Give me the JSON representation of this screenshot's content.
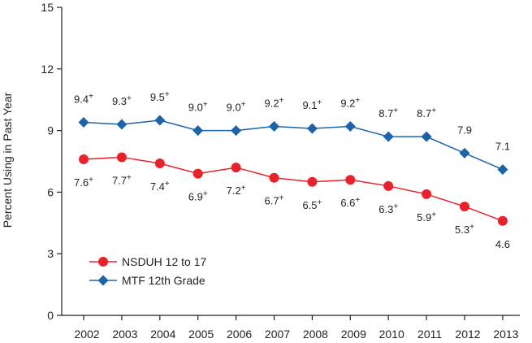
{
  "chart_data": {
    "type": "line",
    "title": "",
    "xlabel": "",
    "ylabel": "Percent Using in Past Year",
    "ylim": [
      0,
      15
    ],
    "yticks": [
      0,
      3,
      6,
      9,
      12,
      15
    ],
    "grid": false,
    "legend_position": "bottom-left",
    "categories": [
      "2002",
      "2003",
      "2004",
      "2005",
      "2006",
      "2007",
      "2008",
      "2009",
      "2010",
      "2011",
      "2012",
      "2013"
    ],
    "series": [
      {
        "name": "NSDUH 12 to 17",
        "color": "#e8222a",
        "marker": "circle",
        "label_position": "below",
        "values": [
          7.6,
          7.7,
          7.4,
          6.9,
          7.2,
          6.7,
          6.5,
          6.6,
          6.3,
          5.9,
          5.3,
          4.6
        ],
        "labels": [
          "7.6",
          "7.7",
          "7.4",
          "6.9",
          "7.2",
          "6.7",
          "6.5",
          "6.6",
          "6.3",
          "5.9",
          "5.3",
          "4.6"
        ],
        "significance": [
          true,
          true,
          true,
          true,
          true,
          true,
          true,
          true,
          true,
          true,
          true,
          false
        ]
      },
      {
        "name": "MTF 12th Grade",
        "color": "#1c63a8",
        "marker": "diamond",
        "label_position": "above",
        "values": [
          9.4,
          9.3,
          9.5,
          9.0,
          9.0,
          9.2,
          9.1,
          9.2,
          8.7,
          8.7,
          7.9,
          7.1
        ],
        "labels": [
          "9.4",
          "9.3",
          "9.5",
          "9.0",
          "9.0",
          "9.2",
          "9.1",
          "9.2",
          "8.7",
          "8.7",
          "7.9",
          "7.1"
        ],
        "significance": [
          true,
          true,
          true,
          true,
          true,
          true,
          true,
          true,
          true,
          true,
          false,
          false
        ]
      }
    ],
    "significance_marker": "+"
  }
}
